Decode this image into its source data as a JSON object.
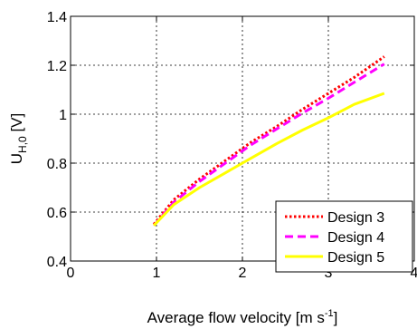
{
  "chart_data": {
    "type": "line",
    "xlabel": "Average flow velocity [m s",
    "xlabel_sup": "-1",
    "xlabel_end": "]",
    "ylabel": "U",
    "ylabel_sub": "H,0",
    "ylabel_end": " [V]",
    "xlim": [
      0,
      4
    ],
    "ylim": [
      0.4,
      1.4
    ],
    "x_ticks": [
      0,
      1,
      2,
      3,
      4
    ],
    "y_ticks": [
      0.4,
      0.6,
      0.8,
      1.0,
      1.2,
      1.4
    ],
    "x_tick_labels": [
      "0",
      "1",
      "2",
      "3",
      "4"
    ],
    "y_tick_labels": [
      "0.4",
      "0.6",
      "0.8",
      "1",
      "1.2",
      "1.4"
    ],
    "grid": true,
    "legend_position": "bottom-right",
    "series": [
      {
        "name": "Design 3",
        "color": "#ff0000",
        "style": "dotted",
        "x": [
          0.97,
          1.2,
          1.5,
          1.8,
          2.1,
          2.4,
          2.7,
          3.0,
          3.3,
          3.65
        ],
        "y": [
          0.55,
          0.65,
          0.735,
          0.81,
          0.885,
          0.95,
          1.02,
          1.085,
          1.15,
          1.235
        ]
      },
      {
        "name": "Design 4",
        "color": "#ff00ff",
        "style": "dashed",
        "x": [
          0.97,
          1.2,
          1.5,
          1.8,
          2.1,
          2.4,
          2.7,
          3.0,
          3.3,
          3.65
        ],
        "y": [
          0.545,
          0.64,
          0.725,
          0.8,
          0.875,
          0.94,
          1.005,
          1.065,
          1.13,
          1.205
        ]
      },
      {
        "name": "Design 5",
        "color": "#ffff00",
        "style": "solid",
        "x": [
          0.97,
          1.2,
          1.5,
          1.8,
          2.1,
          2.4,
          2.7,
          3.0,
          3.3,
          3.65
        ],
        "y": [
          0.545,
          0.63,
          0.7,
          0.76,
          0.82,
          0.88,
          0.935,
          0.985,
          1.04,
          1.085
        ]
      }
    ]
  }
}
